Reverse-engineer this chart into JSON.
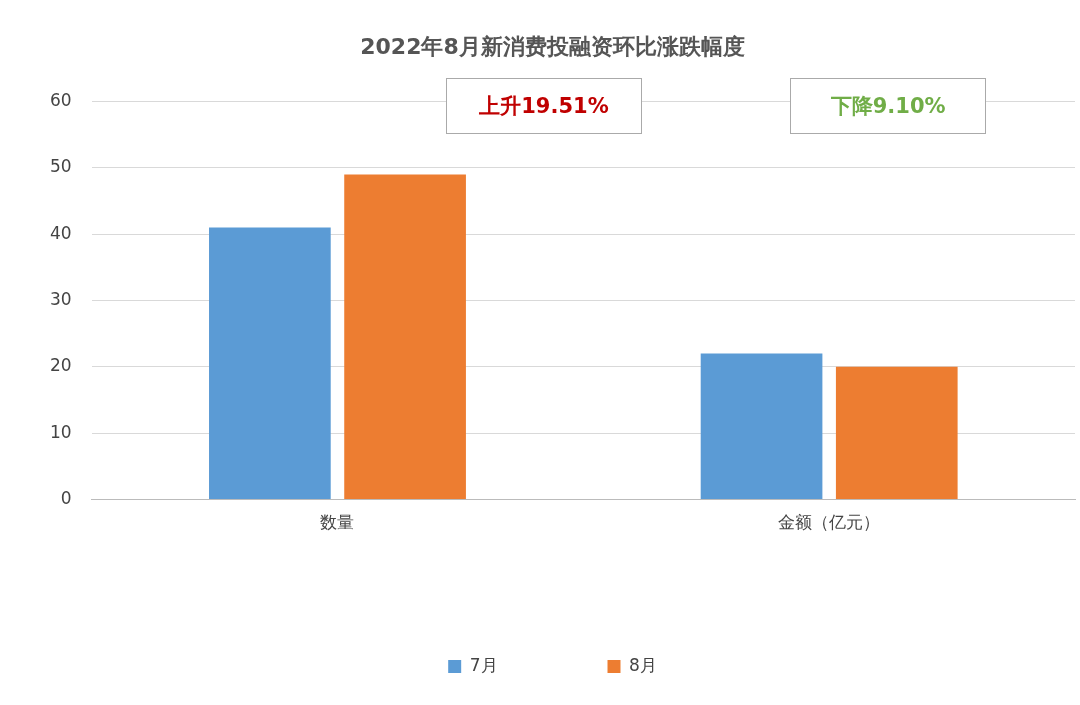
{
  "chart_data": {
    "type": "bar",
    "title": "2022年8月新消费投融资环比涨跌幅度",
    "categories": [
      "数量",
      "金额（亿元）"
    ],
    "series": [
      {
        "name": "7月",
        "color": "#5b9bd5",
        "values": [
          41,
          22
        ]
      },
      {
        "name": "8月",
        "color": "#ed7d31",
        "values": [
          49,
          20
        ]
      }
    ],
    "ylim": [
      0,
      60
    ],
    "yticks": [
      0,
      10,
      20,
      30,
      40,
      50,
      60
    ],
    "grid": "y",
    "legend": "bottom",
    "annotations": [
      "上升19.51%",
      "下降9.10%"
    ]
  }
}
